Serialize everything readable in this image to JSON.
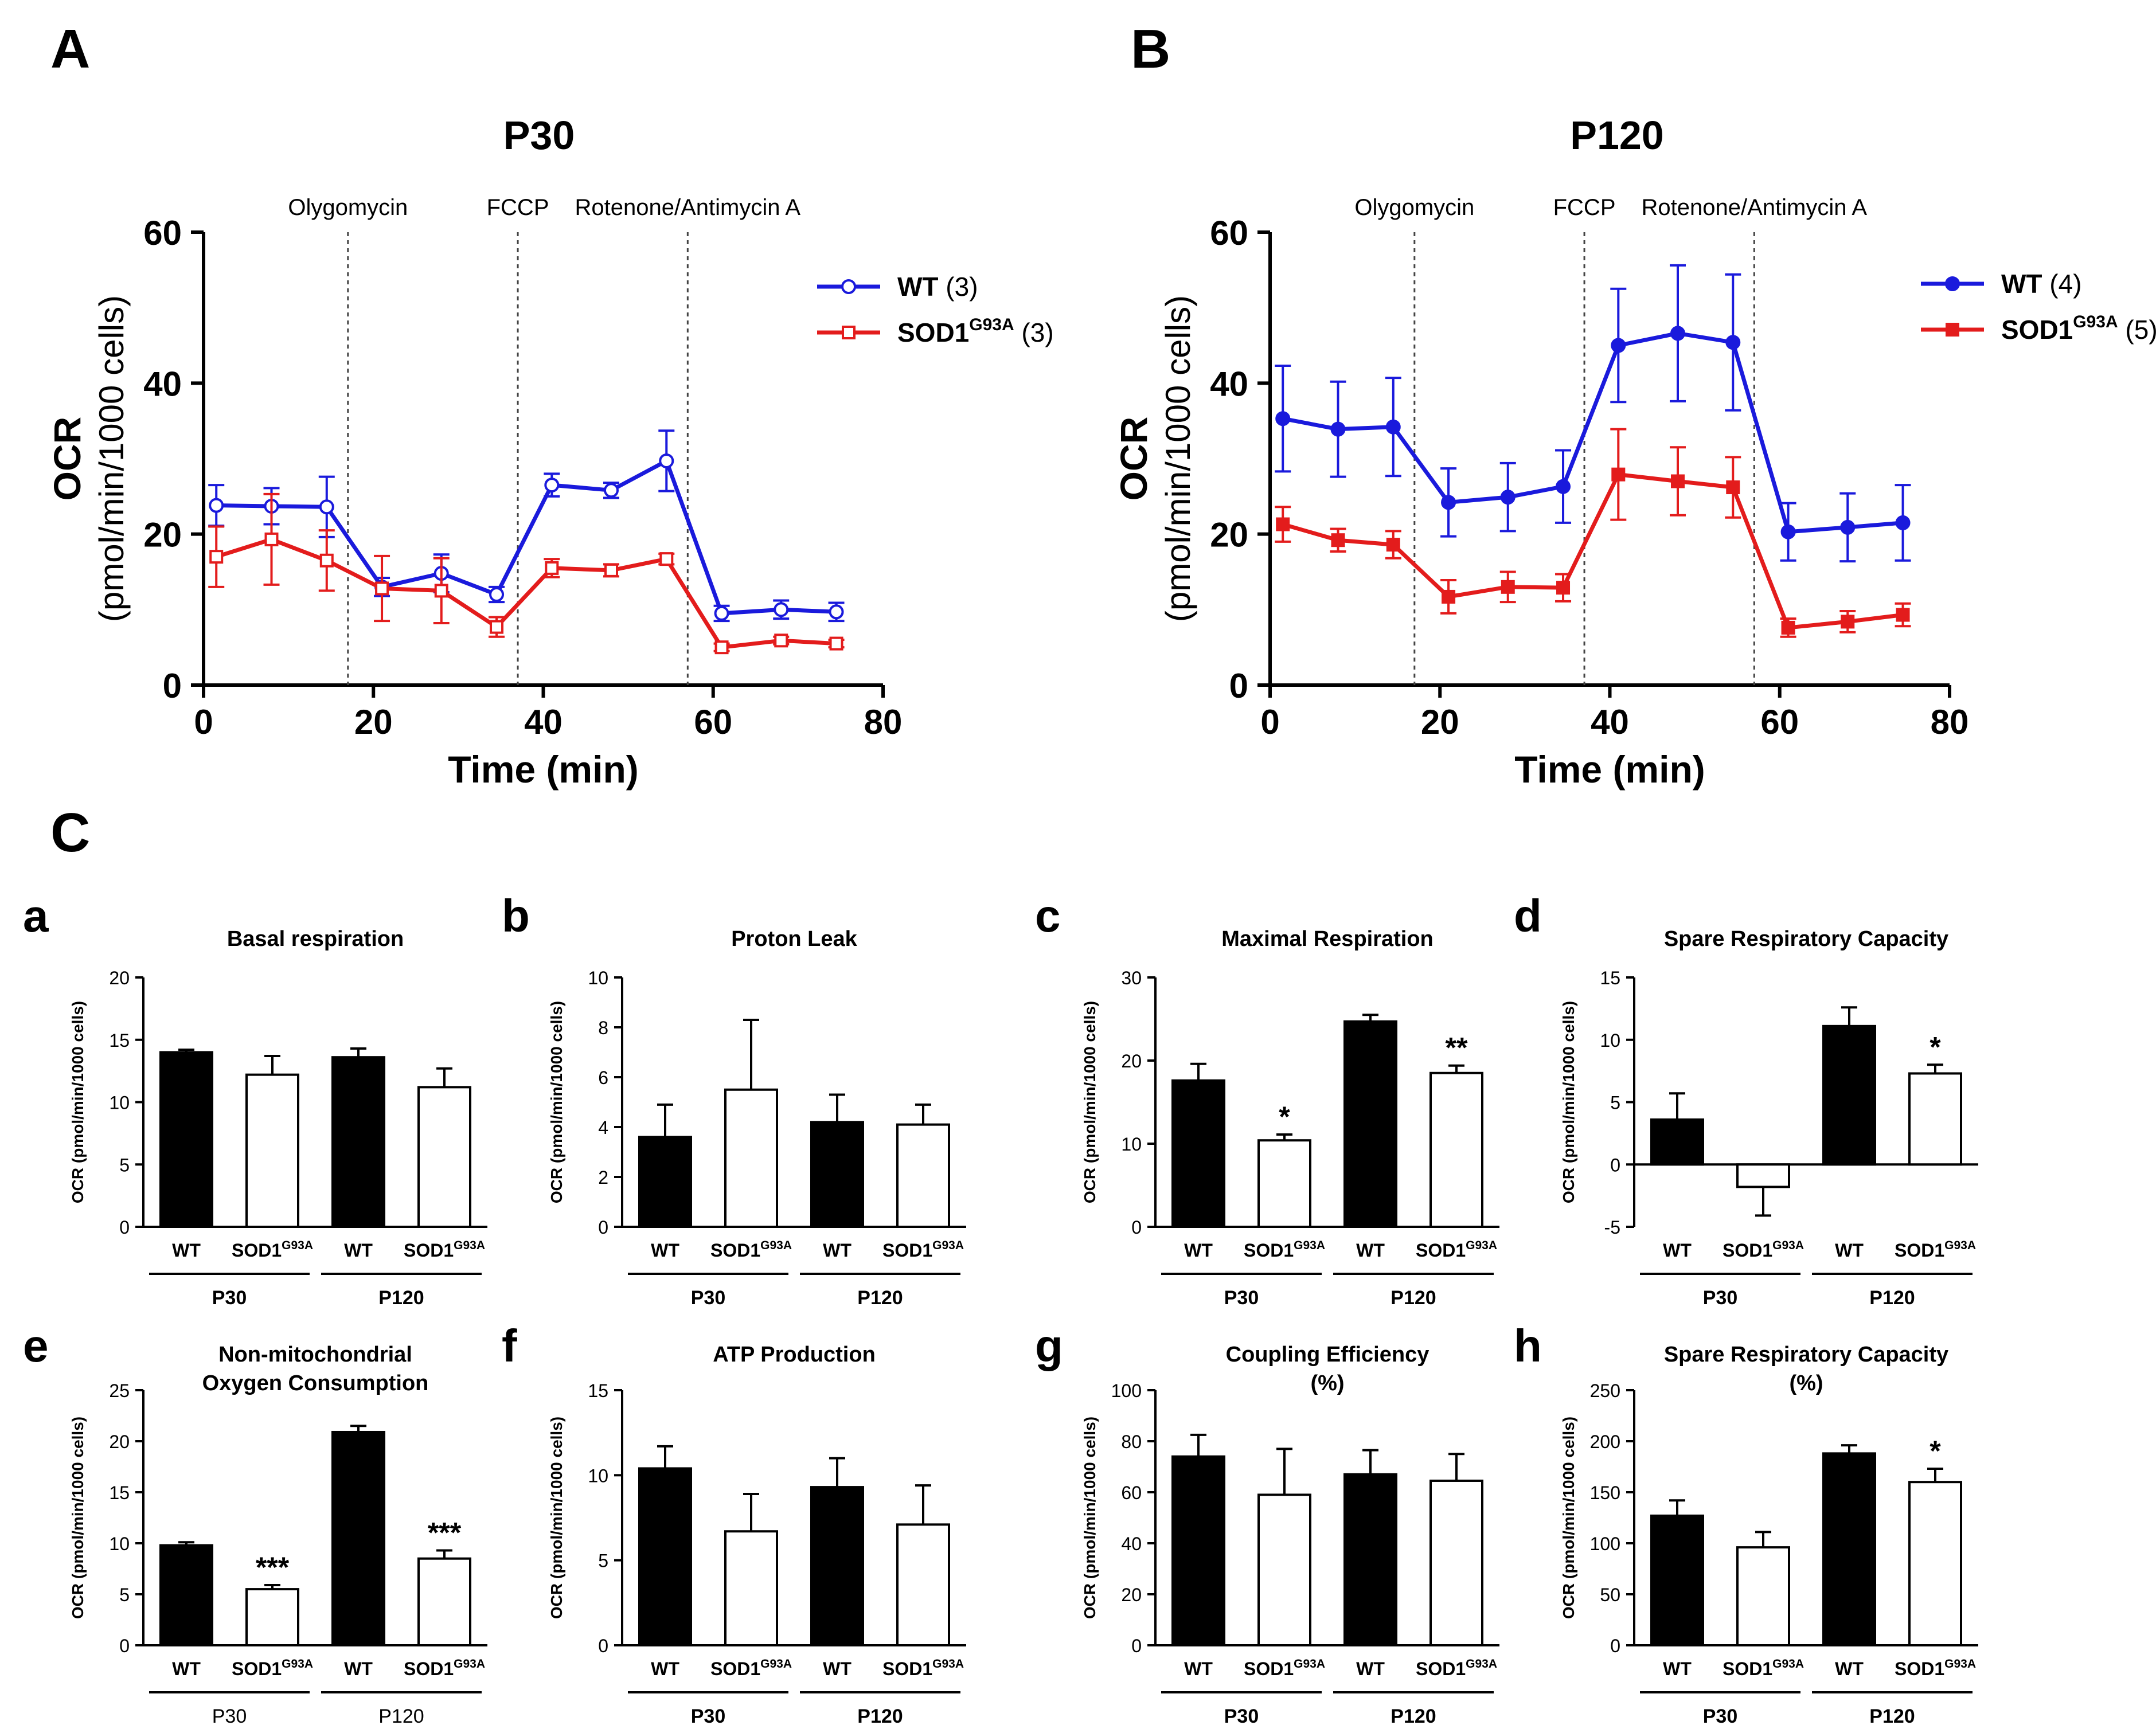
{
  "figure": {
    "panel_A": "A",
    "panel_B": "B",
    "panel_C": "C"
  },
  "chart_data": [
    {
      "id": "A",
      "type": "line",
      "title": "P30",
      "xlabel": "Time (min)",
      "ylabel_main": "OCR",
      "ylabel_unit": "(pmol/min/1000 cells)",
      "xlim": [
        0,
        80
      ],
      "ylim": [
        0,
        60
      ],
      "xticks": [
        0,
        20,
        40,
        60,
        80
      ],
      "yticks": [
        0,
        20,
        40,
        60
      ],
      "injections": [
        {
          "label": "Olygomycin",
          "x": 17
        },
        {
          "label": "FCCP",
          "x": 37
        },
        {
          "label": "Rotenone/Antimycin A",
          "x": 57
        }
      ],
      "series": [
        {
          "name": "WT",
          "sup": "",
          "n": "(3)",
          "color": "#1a1adc",
          "marker": "open-circle",
          "x": [
            1.5,
            8,
            14.5,
            21,
            28,
            34.5,
            41,
            48,
            54.5,
            61,
            68,
            74.5
          ],
          "y": [
            23.8,
            23.7,
            23.6,
            13.0,
            14.8,
            12.0,
            26.5,
            25.8,
            29.7,
            9.5,
            10.0,
            9.7
          ],
          "err": [
            2.7,
            2.4,
            4.0,
            1.2,
            2.5,
            1.0,
            1.5,
            1.0,
            4.0,
            1.0,
            1.2,
            1.2
          ]
        },
        {
          "name": "SOD1",
          "sup": "G93A",
          "n": "(3)",
          "color": "#e31c1c",
          "marker": "open-square",
          "x": [
            1.5,
            8,
            14.5,
            21,
            28,
            34.5,
            41,
            48,
            54.5,
            61,
            68,
            74.5
          ],
          "y": [
            17.0,
            19.3,
            16.5,
            12.8,
            12.5,
            7.7,
            15.5,
            15.2,
            16.7,
            5.0,
            5.9,
            5.5
          ],
          "err": [
            4.0,
            6.0,
            4.0,
            4.3,
            4.3,
            1.3,
            1.2,
            0.8,
            0.7,
            0.5,
            0.5,
            0.5
          ]
        }
      ]
    },
    {
      "id": "B",
      "type": "line",
      "title": "P120",
      "xlabel": "Time (min)",
      "ylabel_main": "OCR",
      "ylabel_unit": "(pmol/min/1000 cells)",
      "xlim": [
        0,
        80
      ],
      "ylim": [
        0,
        60
      ],
      "xticks": [
        0,
        20,
        40,
        60,
        80
      ],
      "yticks": [
        0,
        20,
        40,
        60
      ],
      "injections": [
        {
          "label": "Olygomycin",
          "x": 17
        },
        {
          "label": "FCCP",
          "x": 37
        },
        {
          "label": "Rotenone/Antimycin A",
          "x": 57
        }
      ],
      "series": [
        {
          "name": "WT",
          "sup": "",
          "n": "(4)",
          "color": "#1a1adc",
          "marker": "filled-circle",
          "x": [
            1.5,
            8,
            14.5,
            21,
            28,
            34.5,
            41,
            48,
            54.5,
            61,
            68,
            74.5
          ],
          "y": [
            35.3,
            33.9,
            34.2,
            24.2,
            24.9,
            26.3,
            45.0,
            46.6,
            45.4,
            20.3,
            20.9,
            21.5
          ],
          "err": [
            7.0,
            6.3,
            6.5,
            4.5,
            4.5,
            4.8,
            7.5,
            9.0,
            9.0,
            3.8,
            4.5,
            5.0
          ]
        },
        {
          "name": "SOD1",
          "sup": "G93A",
          "n": "(5)",
          "color": "#e31c1c",
          "marker": "filled-square",
          "x": [
            1.5,
            8,
            14.5,
            21,
            28,
            34.5,
            41,
            48,
            54.5,
            61,
            68,
            74.5
          ],
          "y": [
            21.3,
            19.2,
            18.6,
            11.7,
            13.0,
            12.9,
            27.9,
            27.0,
            26.2,
            7.6,
            8.4,
            9.3
          ],
          "err": [
            2.3,
            1.5,
            1.8,
            2.2,
            2.0,
            1.8,
            6.0,
            4.5,
            4.0,
            1.2,
            1.4,
            1.5
          ]
        }
      ]
    },
    {
      "id": "a",
      "type": "bar",
      "letter": "a",
      "title": [
        "Basal respiration"
      ],
      "ylabel": "OCR (pmol/min/1000 cells)",
      "ylim": [
        0,
        20
      ],
      "yticks": [
        0,
        5,
        10,
        15,
        20
      ],
      "groups": [
        "P30",
        "P120"
      ],
      "categories": [
        "WT",
        "SOD1",
        "WT",
        "SOD1"
      ],
      "cat_sup": [
        "",
        "G93A",
        "",
        "G93A"
      ],
      "values": [
        14.0,
        12.2,
        13.6,
        11.2
      ],
      "err": [
        0.2,
        1.5,
        0.7,
        1.5
      ],
      "stars": [
        "",
        "",
        "",
        ""
      ]
    },
    {
      "id": "b",
      "type": "bar",
      "letter": "b",
      "title": [
        "Proton Leak"
      ],
      "ylabel": "OCR (pmol/min/1000 cells)",
      "ylim": [
        0,
        10
      ],
      "yticks": [
        0,
        2,
        4,
        6,
        8,
        10
      ],
      "groups": [
        "P30",
        "P120"
      ],
      "categories": [
        "WT",
        "SOD1",
        "WT",
        "SOD1"
      ],
      "cat_sup": [
        "",
        "G93A",
        "",
        "G93A"
      ],
      "values": [
        3.6,
        5.5,
        4.2,
        4.1
      ],
      "err": [
        1.3,
        2.8,
        1.1,
        0.8
      ],
      "stars": [
        "",
        "",
        "",
        ""
      ]
    },
    {
      "id": "c",
      "type": "bar",
      "letter": "c",
      "title": [
        "Maximal Respiration"
      ],
      "ylabel": "OCR (pmol/min/1000 cells)",
      "ylim": [
        0,
        30
      ],
      "yticks": [
        0,
        10,
        20,
        30
      ],
      "groups": [
        "P30",
        "P120"
      ],
      "categories": [
        "WT",
        "SOD1",
        "WT",
        "SOD1"
      ],
      "cat_sup": [
        "",
        "G93A",
        "",
        "G93A"
      ],
      "values": [
        17.6,
        10.4,
        24.7,
        18.5
      ],
      "err": [
        2.0,
        0.7,
        0.8,
        0.9
      ],
      "stars": [
        "",
        "*",
        "",
        "**"
      ]
    },
    {
      "id": "d",
      "type": "bar",
      "letter": "d",
      "title": [
        "Spare Respiratory Capacity"
      ],
      "ylabel": "OCR (pmol/min/1000 cells)",
      "ylim": [
        -5,
        15
      ],
      "yticks": [
        -5,
        0,
        5,
        10,
        15
      ],
      "groups": [
        "P30",
        "P120"
      ],
      "categories": [
        "WT",
        "SOD1",
        "WT",
        "SOD1"
      ],
      "cat_sup": [
        "",
        "G93A",
        "",
        "G93A"
      ],
      "values": [
        3.6,
        -1.8,
        11.1,
        7.3
      ],
      "err": [
        2.1,
        2.3,
        1.5,
        0.7
      ],
      "stars": [
        "",
        "",
        "",
        "*"
      ]
    },
    {
      "id": "e",
      "type": "bar",
      "letter": "e",
      "title": [
        "Non-mitochondrial",
        "Oxygen Consumption"
      ],
      "ylabel": "OCR (pmol/min/1000 cells)",
      "ylim": [
        0,
        25
      ],
      "yticks": [
        0,
        5,
        10,
        15,
        20,
        25
      ],
      "groups": [
        "P30",
        "P120"
      ],
      "group_bold": false,
      "categories": [
        "WT",
        "SOD1",
        "WT",
        "SOD1"
      ],
      "cat_sup": [
        "",
        "G93A",
        "",
        "G93A"
      ],
      "values": [
        9.8,
        5.5,
        20.9,
        8.5
      ],
      "err": [
        0.3,
        0.4,
        0.6,
        0.8
      ],
      "stars": [
        "",
        "***",
        "",
        "***"
      ]
    },
    {
      "id": "f",
      "type": "bar",
      "letter": "f",
      "title": [
        "ATP Production"
      ],
      "ylabel": "OCR (pmol/min/1000 cells)",
      "ylim": [
        0,
        15
      ],
      "yticks": [
        0,
        5,
        10,
        15
      ],
      "groups": [
        "P30",
        "P120"
      ],
      "categories": [
        "WT",
        "SOD1",
        "WT",
        "SOD1"
      ],
      "cat_sup": [
        "",
        "G93A",
        "",
        "G93A"
      ],
      "values": [
        10.4,
        6.7,
        9.3,
        7.1
      ],
      "err": [
        1.3,
        2.2,
        1.7,
        2.3
      ],
      "stars": [
        "",
        "",
        "",
        ""
      ]
    },
    {
      "id": "g",
      "type": "bar",
      "letter": "g",
      "title": [
        "Coupling Efficiency",
        "(%)"
      ],
      "ylabel": "OCR (pmol/min/1000 cells)",
      "ylim": [
        0,
        100
      ],
      "yticks": [
        0,
        20,
        40,
        60,
        80,
        100
      ],
      "groups": [
        "P30",
        "P120"
      ],
      "categories": [
        "WT",
        "SOD1",
        "WT",
        "SOD1"
      ],
      "cat_sup": [
        "",
        "G93A",
        "",
        "G93A"
      ],
      "values": [
        74,
        59,
        67,
        64.5
      ],
      "err": [
        8.5,
        18,
        9.5,
        10.5
      ],
      "stars": [
        "",
        "",
        "",
        ""
      ]
    },
    {
      "id": "h",
      "type": "bar",
      "letter": "h",
      "title": [
        "Spare Respiratory Capacity",
        "(%)"
      ],
      "ylabel": "OCR (pmol/min/1000 cells)",
      "ylim": [
        0,
        250
      ],
      "yticks": [
        0,
        50,
        100,
        150,
        200,
        250
      ],
      "groups": [
        "P30",
        "P120"
      ],
      "categories": [
        "WT",
        "SOD1",
        "WT",
        "SOD1"
      ],
      "cat_sup": [
        "",
        "G93A",
        "",
        "G93A"
      ],
      "values": [
        127,
        96,
        188,
        160
      ],
      "err": [
        15,
        15,
        8,
        13
      ],
      "stars": [
        "",
        "",
        "",
        "*"
      ]
    }
  ]
}
